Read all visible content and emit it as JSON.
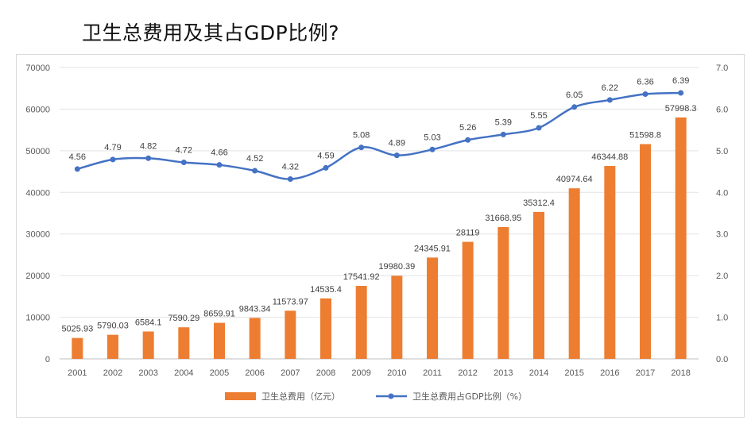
{
  "slide": {
    "title": "卫生总费用及其占GDP比例?"
  },
  "chart_data": {
    "type": "bar",
    "categories": [
      "2001",
      "2002",
      "2003",
      "2004",
      "2005",
      "2006",
      "2007",
      "2008",
      "2009",
      "2010",
      "2011",
      "2012",
      "2013",
      "2014",
      "2015",
      "2016",
      "2017",
      "2018"
    ],
    "series": [
      {
        "name": "卫生总费用（亿元）",
        "type": "bar",
        "axis": "left",
        "color": "#ED7D31",
        "values": [
          5025.93,
          5790.03,
          6584.1,
          7590.29,
          8659.91,
          9843.34,
          11573.97,
          14535.4,
          17541.92,
          19980.39,
          24345.91,
          28119,
          31668.95,
          35312.4,
          40974.64,
          46344.88,
          51598.8,
          57998.3
        ],
        "labels": [
          "5025.93",
          "5790.03",
          "6584.1",
          "7590.29",
          "8659.91",
          "9843.34",
          "11573.97",
          "14535.4",
          "17541.92",
          "19980.39",
          "24345.91",
          "28119",
          "31668.95",
          "35312.4",
          "40974.64",
          "46344.88",
          "51598.8",
          "57998.3"
        ]
      },
      {
        "name": "卫生总费用占GDP比例（%）",
        "type": "line",
        "axis": "right",
        "color": "#4472C4",
        "values": [
          4.56,
          4.79,
          4.82,
          4.72,
          4.66,
          4.52,
          4.32,
          4.59,
          5.08,
          4.89,
          5.03,
          5.26,
          5.39,
          5.55,
          6.05,
          6.22,
          6.36,
          6.39
        ],
        "labels": [
          "4.56",
          "4.79",
          "4.82",
          "4.72",
          "4.66",
          "4.52",
          "4.32",
          "4.59",
          "5.08",
          "4.89",
          "5.03",
          "5.26",
          "5.39",
          "5.55",
          "6.05",
          "6.22",
          "6.36",
          "6.39"
        ]
      }
    ],
    "y_left": {
      "ylim": [
        0,
        70000
      ],
      "ticks": [
        "0",
        "10000",
        "20000",
        "30000",
        "40000",
        "50000",
        "60000",
        "70000"
      ]
    },
    "y_right": {
      "ylim": [
        0,
        7
      ],
      "ticks": [
        "0.0",
        "1.0",
        "2.0",
        "3.0",
        "4.0",
        "5.0",
        "6.0",
        "7.0"
      ]
    },
    "grid": true,
    "legend": "bottom"
  }
}
